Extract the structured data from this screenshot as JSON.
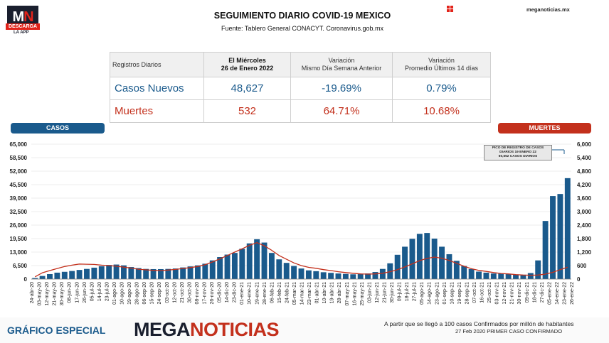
{
  "logo": {
    "mark_m": "M",
    "mark_n": "N",
    "descarga": "DESCARGA",
    "app": "LA APP"
  },
  "header": {
    "title": "SEGUIMIENTO DIARIO COVID-19 MEXICO",
    "source": "Fuente: Tablero General CONACYT. Coronavirus.gob.mx",
    "site": "meganoticias.mx",
    "grid_icon": "grid-icon"
  },
  "table": {
    "headers": {
      "c0": "Registros Diarios",
      "c1a": "El Miércoles",
      "c1b": "26 de Enero 2022",
      "c2a": "Variación",
      "c2b": "Mismo Día Semana Anterior",
      "c3a": "Variación",
      "c3b": "Promedio Últimos 14 días"
    },
    "casos": {
      "label": "Casos Nuevos",
      "value": "48,627",
      "var_week": "-19.69%",
      "var_avg": "0.79%"
    },
    "muertes": {
      "label": "Muertes",
      "value": "532",
      "var_week": "64.71%",
      "var_avg": "10.68%"
    }
  },
  "labels": {
    "casos": "CASOS",
    "muertes": "MUERTES"
  },
  "annotation": {
    "line1": "PICO DE REGISTRO DE CASOS",
    "line2": "DIARIOS 19 ENERO 22",
    "line3": "60,552 CASOS DIARIOS"
  },
  "footer": {
    "grafico": "GRÁFICO ESPECIAL",
    "brand_a": "MEGA",
    "brand_b": "NOTICIAS",
    "note1": "A partir que se llegó a 100 casos Confirmados por millón de habitantes",
    "note2": "27 Feb 2020 PRIMER CASO CONFIRMADO"
  },
  "colors": {
    "casos": "#1a5a8c",
    "muertes": "#c3301c"
  },
  "chart_data": {
    "type": "bar",
    "x_labels": [
      "24-abr-20",
      "03-may-20",
      "12-may-20",
      "21-may-20",
      "30-may-20",
      "08-jun-20",
      "17-jun-20",
      "26-jun-20",
      "05-jul-20",
      "14-jul-20",
      "23-jul-20",
      "01-ago-20",
      "10-ago-20",
      "19-ago-20",
      "28-ago-20",
      "06-sep-20",
      "15-sep-20",
      "24-sep-20",
      "03-oct-20",
      "12-oct-20",
      "21-oct-20",
      "30-oct-20",
      "08-nov-20",
      "17-nov-20",
      "26-nov-20",
      "05-dic-20",
      "14-dic-20",
      "23-dic-20",
      "01-ene-21",
      "10-ene-21",
      "19-ene-21",
      "28-ene-21",
      "06-feb-21",
      "15-feb-21",
      "24-feb-21",
      "05-mar-21",
      "14-mar-21",
      "23-mar-21",
      "01-abr-21",
      "10-abr-21",
      "19-abr-21",
      "28-abr-21",
      "07-may-21",
      "16-may-21",
      "25-may-21",
      "03-jun-21",
      "12-jun-21",
      "21-jun-21",
      "30-jun-21",
      "09-jul-21",
      "18-jul-21",
      "27-jul-21",
      "05-ago-21",
      "14-ago-21",
      "23-ago-21",
      "01-sep-21",
      "10-sep-21",
      "19-sep-21",
      "28-sep-21",
      "07-oct-21",
      "16-oct-21",
      "25-oct-21",
      "03-nov-21",
      "12-nov-21",
      "21-nov-21",
      "30-nov-21",
      "09-dic-21",
      "18-dic-21",
      "27-dic-21",
      "05-ene-22",
      "14-ene-22",
      "23-ene-22",
      "26-ene-22"
    ],
    "y_left_ticks": [
      "0",
      "6,500",
      "13,000",
      "19,500",
      "26,000",
      "32,500",
      "39,000",
      "45,500",
      "52,000",
      "58,500",
      "65,000"
    ],
    "y_left_range": [
      0,
      65000
    ],
    "y_right_ticks": [
      "0",
      "600",
      "1,200",
      "1,800",
      "2,400",
      "3,000",
      "3,600",
      "4,200",
      "4,800",
      "5,400",
      "6,000"
    ],
    "y_right_range": [
      0,
      6000
    ],
    "casos_weekly": [
      500,
      1500,
      2400,
      3100,
      3500,
      3900,
      4400,
      4900,
      5500,
      6200,
      6800,
      7000,
      6600,
      5800,
      5300,
      4900,
      4800,
      4800,
      4900,
      5100,
      5600,
      6100,
      6600,
      7400,
      9000,
      10600,
      11800,
      12600,
      14600,
      17200,
      19200,
      17600,
      12600,
      9500,
      7800,
      6300,
      5100,
      4200,
      3800,
      3300,
      3000,
      2700,
      2500,
      2300,
      2400,
      2700,
      3400,
      4900,
      7600,
      11700,
      15600,
      19400,
      21800,
      22200,
      19500,
      15600,
      12000,
      8800,
      6300,
      4800,
      3600,
      3100,
      2700,
      2600,
      2400,
      2200,
      2100,
      2900,
      9000,
      28000,
      40000,
      41000,
      48627
    ],
    "muertes_weekly": [
      100,
      280,
      380,
      470,
      560,
      620,
      670,
      660,
      650,
      620,
      600,
      570,
      530,
      490,
      440,
      410,
      390,
      380,
      400,
      430,
      470,
      510,
      560,
      640,
      760,
      900,
      1050,
      1200,
      1350,
      1500,
      1620,
      1480,
      1280,
      1050,
      880,
      720,
      600,
      520,
      480,
      420,
      380,
      330,
      290,
      260,
      230,
      220,
      230,
      260,
      330,
      420,
      540,
      680,
      820,
      920,
      980,
      930,
      830,
      700,
      570,
      460,
      390,
      340,
      290,
      250,
      230,
      200,
      180,
      170,
      180,
      220,
      300,
      420,
      532
    ]
  }
}
